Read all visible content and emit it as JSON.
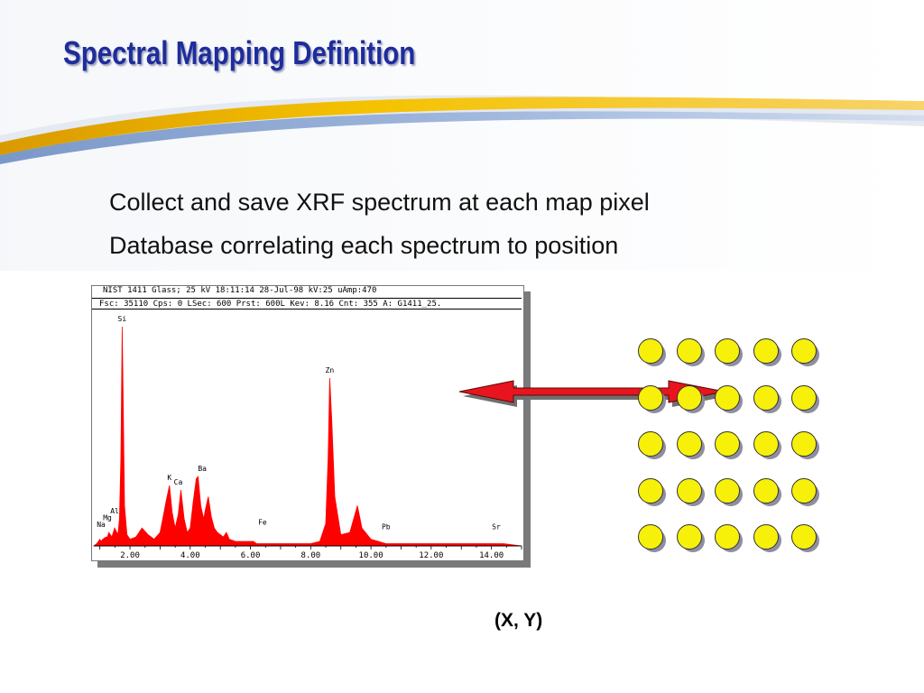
{
  "slide": {
    "title": "Spectral Mapping Definition",
    "bullets": [
      "Collect and save XRF spectrum at each map pixel",
      "Database correlating each spectrum to position"
    ],
    "coord_label": "(X, Y)"
  },
  "colors": {
    "title": "#1f2c9c",
    "spectrum": "#ff0000",
    "arrow": "#e8141e",
    "pixel_dot": "#f7f10a",
    "swoosh_gold": "#f2b300",
    "swoosh_blue": "#6b8fc6"
  },
  "spectrum": {
    "header": "NIST 1411 Glass; 25 kV   18:11:14  28-Jul-98  kV:25  uAmp:470",
    "status": "Fsc: 35110   Cps: 0  LSec:  600  Prst: 600L  Kev: 8.16  Cnt: 355  A: G1411_25."
  },
  "chart_data": {
    "type": "line",
    "xlabel": "",
    "ylabel": "",
    "xlim": [
      0.8,
      15.0
    ],
    "ylim": [
      0,
      100
    ],
    "x_ticks": [
      "2.00",
      "4.00",
      "6.00",
      "8.00",
      "10.00",
      "12.00",
      "14.00"
    ],
    "x_tick_values": [
      2,
      4,
      6,
      8,
      10,
      12,
      14
    ],
    "series": [
      {
        "x": [
          0.8,
          0.9,
          1.0,
          1.04,
          1.1,
          1.2,
          1.25,
          1.3,
          1.4,
          1.49,
          1.6,
          1.65,
          1.7,
          1.74,
          1.78,
          1.82,
          1.9,
          2.0,
          2.2,
          2.4,
          2.6,
          2.8,
          3.0,
          3.1,
          3.2,
          3.31,
          3.4,
          3.5,
          3.6,
          3.69,
          3.8,
          3.9,
          4.0,
          4.1,
          4.2,
          4.26,
          4.35,
          4.45,
          4.5,
          4.6,
          4.7,
          4.8,
          4.9,
          5.0,
          5.1,
          5.2,
          5.3,
          5.5,
          5.7,
          5.9,
          6.1,
          6.2,
          6.4,
          6.6,
          6.8,
          7.0,
          7.5,
          8.0,
          8.3,
          8.5,
          8.58,
          8.63,
          8.7,
          8.8,
          9.0,
          9.3,
          9.55,
          9.7,
          10.0,
          10.5,
          11.0,
          12.0,
          13.0,
          14.0,
          14.16,
          14.4,
          15.0
        ],
        "y": [
          0,
          1,
          3,
          2,
          3,
          4,
          4,
          6,
          4,
          8,
          5,
          12,
          40,
          98,
          60,
          18,
          5,
          3,
          4,
          8,
          5,
          3,
          6,
          13,
          20,
          27,
          15,
          8,
          14,
          25,
          12,
          6,
          8,
          20,
          30,
          31,
          18,
          12,
          16,
          22,
          13,
          8,
          6,
          5,
          4,
          6,
          3,
          2,
          2,
          2,
          2,
          1,
          1,
          1,
          1,
          1,
          1,
          1,
          2,
          10,
          40,
          75,
          56,
          22,
          5,
          6,
          18,
          8,
          3,
          1,
          1,
          1,
          1,
          1,
          1,
          1,
          0
        ]
      }
    ],
    "annotations": [
      {
        "text": "Si",
        "x": 1.74,
        "y": 98
      },
      {
        "text": "Zn",
        "x": 8.63,
        "y": 75
      },
      {
        "text": "Ba",
        "x": 4.4,
        "y": 31
      },
      {
        "text": "Ca",
        "x": 3.6,
        "y": 25
      },
      {
        "text": "K",
        "x": 3.31,
        "y": 27
      },
      {
        "text": "Al",
        "x": 1.49,
        "y": 12
      },
      {
        "text": "Mg",
        "x": 1.25,
        "y": 9
      },
      {
        "text": "Na",
        "x": 1.04,
        "y": 6
      },
      {
        "text": "Fe",
        "x": 6.4,
        "y": 7
      },
      {
        "text": "Pb",
        "x": 10.5,
        "y": 5
      },
      {
        "text": "Sr",
        "x": 14.16,
        "y": 5
      }
    ]
  },
  "pixel_grid": {
    "rows": 5,
    "cols": 5,
    "highlighted_row": 1
  }
}
